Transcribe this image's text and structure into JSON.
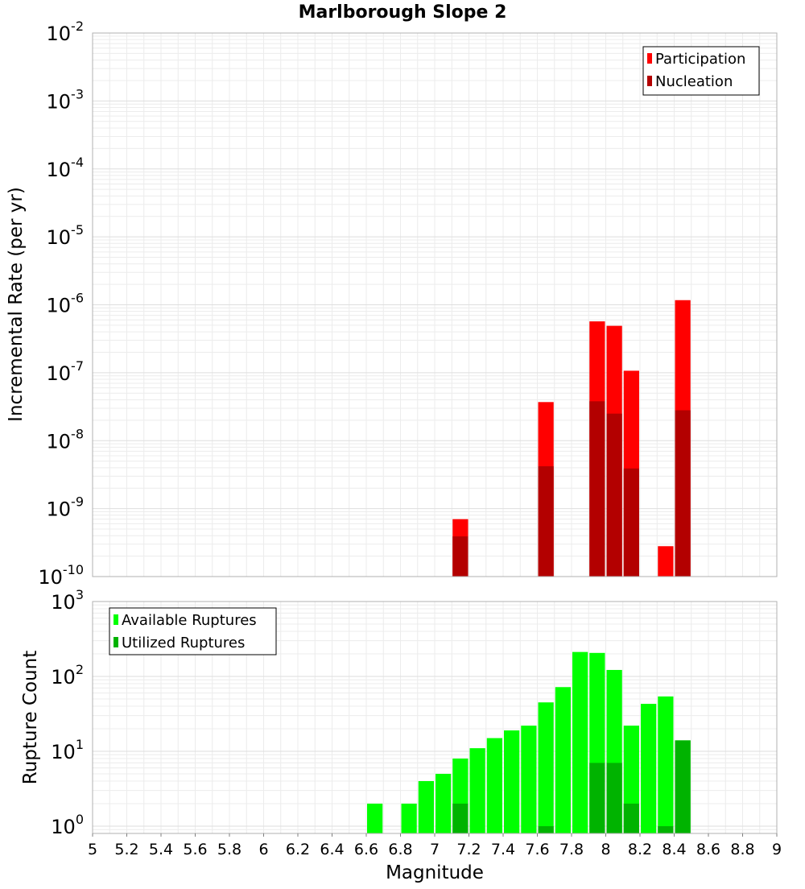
{
  "chart_data": [
    {
      "type": "bar",
      "title": "Marlborough Slope 2",
      "xlabel": "",
      "ylabel": "Incremental Rate (per yr)",
      "yscale": "log",
      "xlim": [
        5,
        9
      ],
      "ylim": [
        1e-10,
        0.01
      ],
      "ytick_exponents": [
        "-10",
        "-9",
        "-8",
        "-7",
        "-6",
        "-5",
        "-4",
        "-3",
        "-2"
      ],
      "ytick_base": "10",
      "grid": true,
      "legend_position": "top-right",
      "x": [
        7.15,
        7.65,
        7.95,
        8.05,
        8.15,
        8.35,
        8.45
      ],
      "series": [
        {
          "name": "Participation",
          "color": "#ff0000",
          "values": [
            7e-10,
            3.7e-08,
            5.7e-07,
            4.9e-07,
            1.07e-07,
            2.8e-10,
            1.17e-06
          ]
        },
        {
          "name": "Nucleation",
          "color": "#b30000",
          "values": [
            3.9e-10,
            4.2e-09,
            3.8e-08,
            2.5e-08,
            3.9e-09,
            null,
            2.8e-08
          ]
        }
      ]
    },
    {
      "type": "bar",
      "title": "",
      "xlabel": "Magnitude",
      "ylabel": "Rupture Count",
      "yscale": "log",
      "xlim": [
        5,
        9
      ],
      "ylim": [
        0.8,
        1000
      ],
      "ytick_exponents": [
        "0",
        "1",
        "2",
        "3"
      ],
      "ytick_base": "10",
      "grid": true,
      "legend_position": "top-left",
      "xticks": [
        "5",
        "5.2",
        "5.4",
        "5.6",
        "5.8",
        "6",
        "6.2",
        "6.4",
        "6.6",
        "6.8",
        "7",
        "7.2",
        "7.4",
        "7.6",
        "7.8",
        "8",
        "8.2",
        "8.4",
        "8.6",
        "8.8",
        "9"
      ],
      "x": [
        6.65,
        6.85,
        6.95,
        7.05,
        7.15,
        7.25,
        7.35,
        7.45,
        7.55,
        7.65,
        7.75,
        7.85,
        7.95,
        8.05,
        8.15,
        8.25,
        8.35,
        8.45
      ],
      "series": [
        {
          "name": "Available Ruptures",
          "color": "#00ff00",
          "values": [
            2,
            2,
            4,
            5,
            8,
            11,
            15,
            19,
            22,
            45,
            72,
            212,
            206,
            122,
            22,
            43,
            54,
            14
          ]
        },
        {
          "name": "Utilized Ruptures",
          "color": "#00b300",
          "values": [
            null,
            null,
            null,
            null,
            2,
            null,
            null,
            null,
            null,
            1,
            null,
            null,
            7,
            7,
            2,
            null,
            1,
            14
          ]
        }
      ]
    }
  ]
}
